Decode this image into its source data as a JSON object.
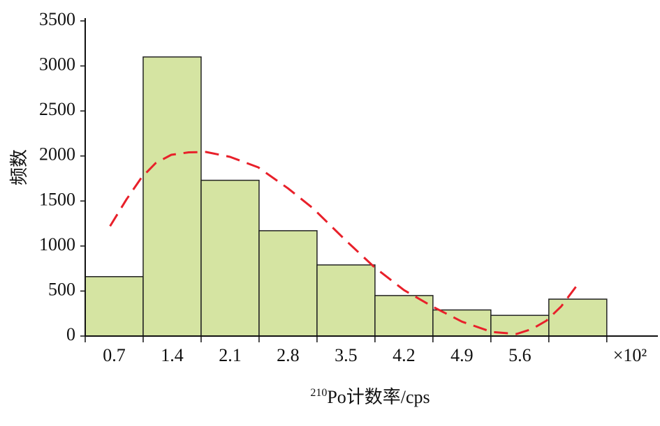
{
  "chart_data": {
    "type": "histogram",
    "bins": [
      0.35,
      1.05,
      1.75,
      2.45,
      3.15,
      3.85,
      4.55,
      5.25,
      5.95,
      6.65
    ],
    "values": [
      660,
      3100,
      1730,
      1170,
      790,
      450,
      290,
      230,
      410
    ],
    "color": "#d5e4a2",
    "edge_color": "#222222",
    "xlim": [
      0.35,
      7.2
    ],
    "xticks": [
      0.7,
      1.4,
      2.1,
      2.8,
      3.5,
      4.2,
      4.9,
      5.6
    ],
    "ylim": [
      0,
      3500
    ],
    "yticks": [
      0,
      500,
      1000,
      1500,
      2000,
      2500,
      3000,
      3500
    ],
    "ylabel": "频数",
    "xlabel_superscript": "210",
    "xlabel": "Po计数率/cps",
    "x_multiplier": "×10²",
    "fit": {
      "color": "#e8202a",
      "dashed": true,
      "x": [
        0.65,
        0.85,
        1.03,
        1.2,
        1.39,
        1.6,
        1.81,
        2.1,
        2.44,
        2.8,
        3.1,
        3.5,
        3.84,
        4.2,
        4.55,
        4.9,
        5.26,
        5.56,
        5.75,
        5.92,
        6.1,
        6.32
      ],
      "values": [
        1220,
        1520,
        1760,
        1920,
        2013,
        2040,
        2044,
        1990,
        1874,
        1640,
        1420,
        1060,
        767,
        510,
        325,
        160,
        46,
        23,
        80,
        170,
        330,
        600
      ]
    }
  }
}
